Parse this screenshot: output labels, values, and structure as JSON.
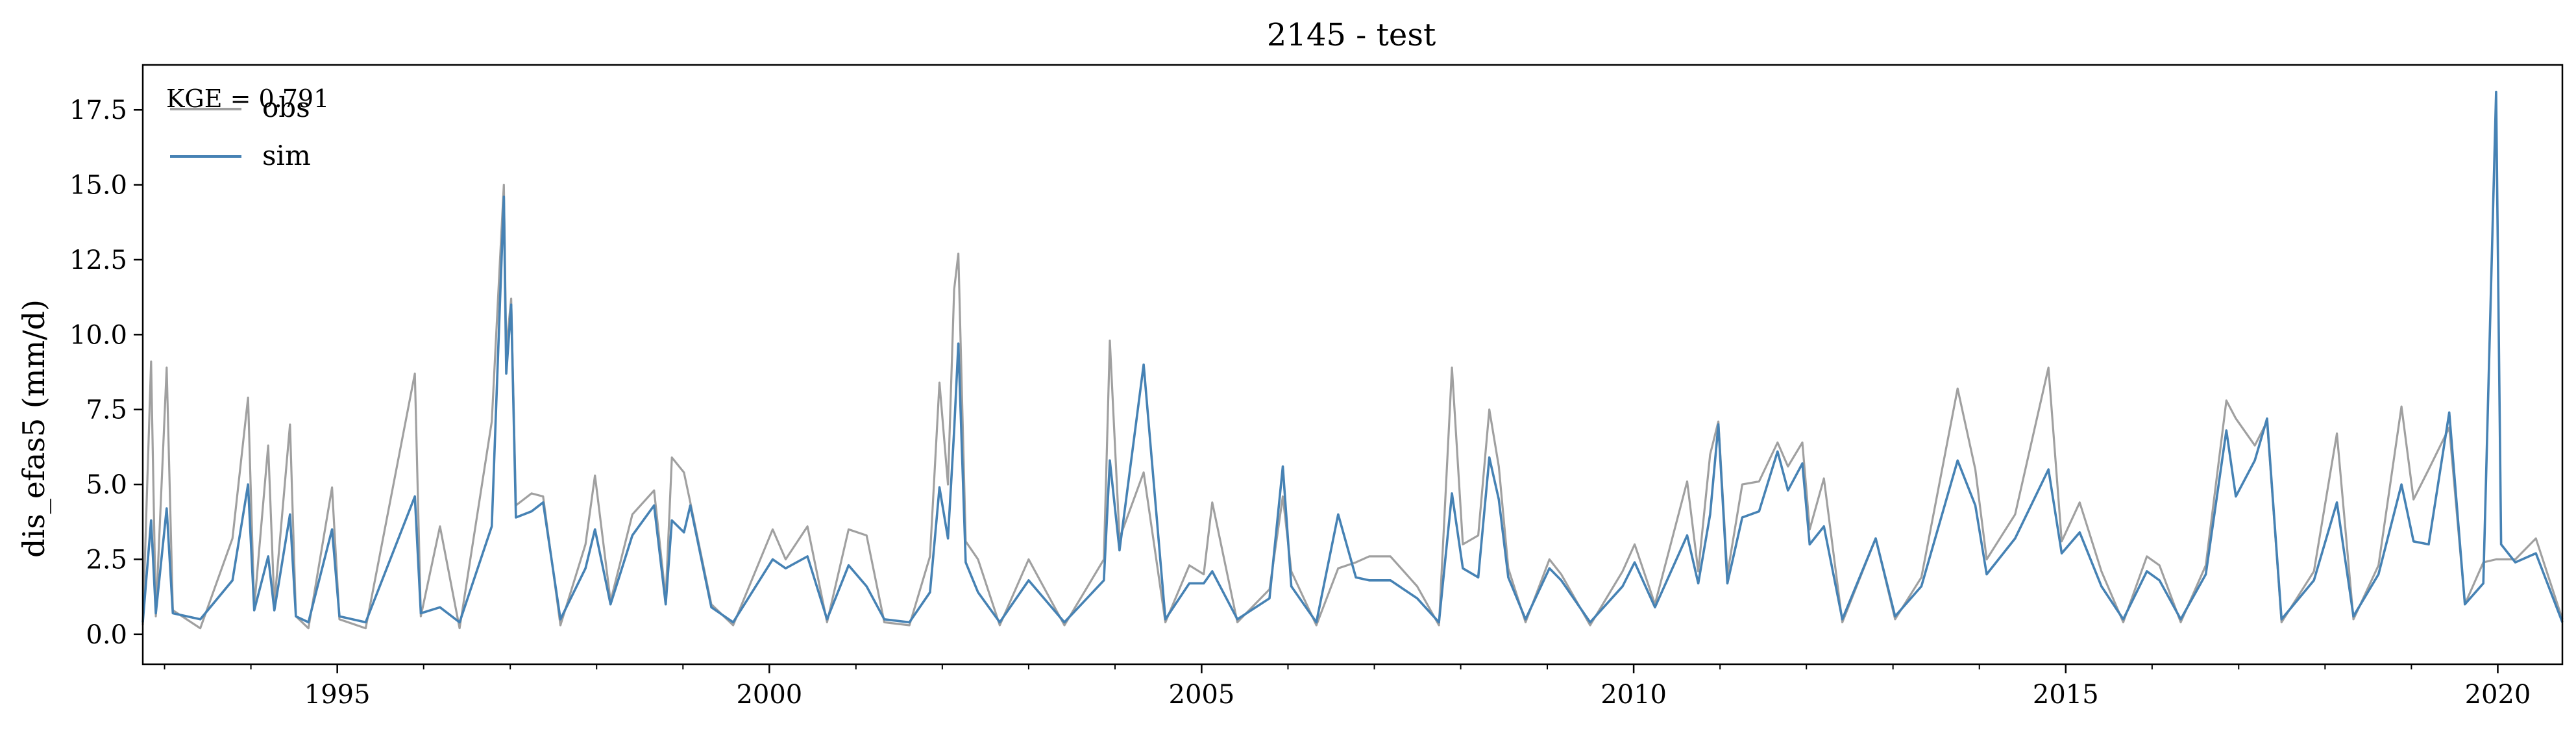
{
  "chart_data": {
    "type": "line",
    "title": "2145 - test",
    "xlabel": "",
    "ylabel": "dis_efas5 (mm/d)",
    "xlim": [
      "1992-10-01",
      "2020-09-30"
    ],
    "ylim": [
      -1.0,
      19.0
    ],
    "x_ticks": [
      "1995",
      "2000",
      "2005",
      "2010",
      "2015",
      "2020"
    ],
    "y_ticks": [
      "0.0",
      "2.5",
      "5.0",
      "7.5",
      "10.0",
      "12.5",
      "15.0",
      "17.5"
    ],
    "annotation": "KGE = 0.791",
    "legend": "upper-left",
    "grid": false,
    "colors": {
      "obs": "#a0a0a0",
      "sim": "#4682b4"
    },
    "series": [
      {
        "name": "obs",
        "points": [
          [
            "1992-10-01",
            0.3
          ],
          [
            "1992-11-05",
            9.1
          ],
          [
            "1992-11-25",
            0.6
          ],
          [
            "1993-01-10",
            8.9
          ],
          [
            "1993-02-05",
            0.8
          ],
          [
            "1993-06-01",
            0.2
          ],
          [
            "1993-10-15",
            3.2
          ],
          [
            "1993-12-20",
            7.9
          ],
          [
            "1994-01-15",
            0.9
          ],
          [
            "1994-03-15",
            6.3
          ],
          [
            "1994-04-10",
            1.0
          ],
          [
            "1994-06-15",
            7.0
          ],
          [
            "1994-07-10",
            0.6
          ],
          [
            "1994-09-01",
            0.2
          ],
          [
            "1994-12-10",
            4.9
          ],
          [
            "1995-01-10",
            0.5
          ],
          [
            "1995-05-01",
            0.2
          ],
          [
            "1995-11-25",
            8.7
          ],
          [
            "1995-12-20",
            0.6
          ],
          [
            "1996-03-10",
            3.6
          ],
          [
            "1996-06-01",
            0.2
          ],
          [
            "1996-10-15",
            7.1
          ],
          [
            "1996-12-05",
            15.0
          ],
          [
            "1996-12-15",
            9.5
          ],
          [
            "1997-01-05",
            11.2
          ],
          [
            "1997-01-25",
            4.3
          ],
          [
            "1997-04-01",
            4.7
          ],
          [
            "1997-05-20",
            4.6
          ],
          [
            "1997-08-01",
            0.3
          ],
          [
            "1997-11-15",
            3.0
          ],
          [
            "1997-12-25",
            5.3
          ],
          [
            "1998-03-01",
            1.1
          ],
          [
            "1998-06-01",
            4.0
          ],
          [
            "1998-09-01",
            4.8
          ],
          [
            "1998-10-20",
            1.2
          ],
          [
            "1998-11-15",
            5.9
          ],
          [
            "1999-01-05",
            5.4
          ],
          [
            "1999-02-01",
            4.4
          ],
          [
            "1999-05-01",
            1.0
          ],
          [
            "1999-08-01",
            0.3
          ],
          [
            "2000-01-15",
            3.5
          ],
          [
            "2000-03-10",
            2.5
          ],
          [
            "2000-06-10",
            3.6
          ],
          [
            "2000-09-01",
            0.4
          ],
          [
            "2000-12-01",
            3.5
          ],
          [
            "2001-02-15",
            3.3
          ],
          [
            "2001-05-01",
            0.4
          ],
          [
            "2001-08-15",
            0.3
          ],
          [
            "2001-11-10",
            2.6
          ],
          [
            "2001-12-20",
            8.4
          ],
          [
            "2002-01-25",
            5.0
          ],
          [
            "2002-02-20",
            11.5
          ],
          [
            "2002-03-10",
            12.7
          ],
          [
            "2002-04-10",
            3.1
          ],
          [
            "2002-06-01",
            2.5
          ],
          [
            "2002-09-01",
            0.3
          ],
          [
            "2003-01-01",
            2.5
          ],
          [
            "2003-06-01",
            0.3
          ],
          [
            "2003-11-15",
            2.5
          ],
          [
            "2003-12-10",
            9.8
          ],
          [
            "2004-01-20",
            3.2
          ],
          [
            "2004-05-01",
            5.4
          ],
          [
            "2004-08-01",
            0.4
          ],
          [
            "2004-11-10",
            2.3
          ],
          [
            "2005-01-10",
            2.0
          ],
          [
            "2005-02-15",
            4.4
          ],
          [
            "2005-06-01",
            0.4
          ],
          [
            "2005-10-15",
            1.5
          ],
          [
            "2005-12-10",
            4.6
          ],
          [
            "2006-01-15",
            2.1
          ],
          [
            "2006-05-01",
            0.3
          ],
          [
            "2006-08-01",
            2.2
          ],
          [
            "2006-10-15",
            2.4
          ],
          [
            "2006-12-10",
            2.6
          ],
          [
            "2007-03-10",
            2.6
          ],
          [
            "2007-07-01",
            1.6
          ],
          [
            "2007-10-01",
            0.3
          ],
          [
            "2007-11-25",
            8.9
          ],
          [
            "2008-01-10",
            3.0
          ],
          [
            "2008-03-15",
            3.3
          ],
          [
            "2008-05-01",
            7.5
          ],
          [
            "2008-06-10",
            5.6
          ],
          [
            "2008-07-20",
            2.2
          ],
          [
            "2008-10-01",
            0.4
          ],
          [
            "2009-01-10",
            2.5
          ],
          [
            "2009-03-01",
            2.0
          ],
          [
            "2009-07-01",
            0.3
          ],
          [
            "2009-11-15",
            2.1
          ],
          [
            "2010-01-05",
            3.0
          ],
          [
            "2010-04-01",
            1.0
          ],
          [
            "2010-08-15",
            5.1
          ],
          [
            "2010-10-01",
            2.1
          ],
          [
            "2010-11-20",
            6.0
          ],
          [
            "2010-12-25",
            7.1
          ],
          [
            "2011-02-01",
            2.0
          ],
          [
            "2011-04-05",
            5.0
          ],
          [
            "2011-06-15",
            5.1
          ],
          [
            "2011-09-01",
            6.4
          ],
          [
            "2011-10-15",
            5.6
          ],
          [
            "2011-12-15",
            6.4
          ],
          [
            "2012-01-15",
            3.5
          ],
          [
            "2012-03-15",
            5.2
          ],
          [
            "2012-06-01",
            0.4
          ],
          [
            "2012-10-20",
            3.2
          ],
          [
            "2013-01-10",
            0.5
          ],
          [
            "2013-05-01",
            1.9
          ],
          [
            "2013-10-01",
            8.2
          ],
          [
            "2013-12-15",
            5.5
          ],
          [
            "2014-02-01",
            2.5
          ],
          [
            "2014-06-01",
            4.0
          ],
          [
            "2014-10-20",
            8.9
          ],
          [
            "2014-12-15",
            3.1
          ],
          [
            "2015-03-01",
            4.4
          ],
          [
            "2015-06-01",
            2.1
          ],
          [
            "2015-09-01",
            0.4
          ],
          [
            "2015-12-10",
            2.6
          ],
          [
            "2016-02-01",
            2.3
          ],
          [
            "2016-05-01",
            0.4
          ],
          [
            "2016-08-15",
            2.3
          ],
          [
            "2016-11-10",
            7.8
          ],
          [
            "2016-12-20",
            7.2
          ],
          [
            "2017-03-10",
            6.3
          ],
          [
            "2017-05-01",
            7.1
          ],
          [
            "2017-07-01",
            0.4
          ],
          [
            "2017-11-15",
            2.1
          ],
          [
            "2018-02-20",
            6.7
          ],
          [
            "2018-05-01",
            0.5
          ],
          [
            "2018-08-15",
            2.3
          ],
          [
            "2018-11-20",
            7.6
          ],
          [
            "2019-01-10",
            4.5
          ],
          [
            "2019-03-15",
            5.5
          ],
          [
            "2019-06-10",
            6.9
          ],
          [
            "2019-08-15",
            1.0
          ],
          [
            "2019-11-01",
            2.4
          ],
          [
            "2019-12-25",
            2.5
          ],
          [
            "2020-03-15",
            2.5
          ],
          [
            "2020-06-10",
            3.2
          ],
          [
            "2020-09-30",
            0.5
          ]
        ]
      },
      {
        "name": "sim",
        "points": [
          [
            "1992-10-01",
            0.4
          ],
          [
            "1992-11-05",
            3.8
          ],
          [
            "1992-11-25",
            0.7
          ],
          [
            "1993-01-10",
            4.2
          ],
          [
            "1993-02-05",
            0.7
          ],
          [
            "1993-06-01",
            0.5
          ],
          [
            "1993-10-15",
            1.8
          ],
          [
            "1993-12-20",
            5.0
          ],
          [
            "1994-01-15",
            0.8
          ],
          [
            "1994-03-15",
            2.6
          ],
          [
            "1994-04-10",
            0.8
          ],
          [
            "1994-06-15",
            4.0
          ],
          [
            "1994-07-10",
            0.6
          ],
          [
            "1994-09-01",
            0.4
          ],
          [
            "1994-12-10",
            3.5
          ],
          [
            "1995-01-10",
            0.6
          ],
          [
            "1995-05-01",
            0.4
          ],
          [
            "1995-11-25",
            4.6
          ],
          [
            "1995-12-20",
            0.7
          ],
          [
            "1996-03-10",
            0.9
          ],
          [
            "1996-06-01",
            0.4
          ],
          [
            "1996-10-15",
            3.6
          ],
          [
            "1996-12-05",
            14.6
          ],
          [
            "1996-12-15",
            8.7
          ],
          [
            "1997-01-05",
            11.0
          ],
          [
            "1997-01-25",
            3.9
          ],
          [
            "1997-04-01",
            4.1
          ],
          [
            "1997-05-20",
            4.4
          ],
          [
            "1997-08-01",
            0.5
          ],
          [
            "1997-11-15",
            2.2
          ],
          [
            "1997-12-25",
            3.5
          ],
          [
            "1998-03-01",
            1.0
          ],
          [
            "1998-06-01",
            3.3
          ],
          [
            "1998-09-01",
            4.3
          ],
          [
            "1998-10-20",
            1.0
          ],
          [
            "1998-11-15",
            3.8
          ],
          [
            "1999-01-05",
            3.4
          ],
          [
            "1999-02-01",
            4.3
          ],
          [
            "1999-05-01",
            0.9
          ],
          [
            "1999-08-01",
            0.4
          ],
          [
            "2000-01-15",
            2.5
          ],
          [
            "2000-03-10",
            2.2
          ],
          [
            "2000-06-10",
            2.6
          ],
          [
            "2000-09-01",
            0.5
          ],
          [
            "2000-12-01",
            2.3
          ],
          [
            "2001-02-15",
            1.6
          ],
          [
            "2001-05-01",
            0.5
          ],
          [
            "2001-08-15",
            0.4
          ],
          [
            "2001-11-10",
            1.4
          ],
          [
            "2001-12-20",
            4.9
          ],
          [
            "2002-01-25",
            3.2
          ],
          [
            "2002-02-20",
            6.8
          ],
          [
            "2002-03-10",
            9.7
          ],
          [
            "2002-04-10",
            2.4
          ],
          [
            "2002-06-01",
            1.4
          ],
          [
            "2002-09-01",
            0.4
          ],
          [
            "2003-01-01",
            1.8
          ],
          [
            "2003-06-01",
            0.4
          ],
          [
            "2003-11-15",
            1.8
          ],
          [
            "2003-12-10",
            5.8
          ],
          [
            "2004-01-20",
            2.8
          ],
          [
            "2004-05-01",
            9.0
          ],
          [
            "2004-08-01",
            0.5
          ],
          [
            "2004-11-10",
            1.7
          ],
          [
            "2005-01-10",
            1.7
          ],
          [
            "2005-02-15",
            2.1
          ],
          [
            "2005-06-01",
            0.5
          ],
          [
            "2005-10-15",
            1.2
          ],
          [
            "2005-12-10",
            5.6
          ],
          [
            "2006-01-15",
            1.6
          ],
          [
            "2006-05-01",
            0.4
          ],
          [
            "2006-08-01",
            4.0
          ],
          [
            "2006-10-15",
            1.9
          ],
          [
            "2006-12-10",
            1.8
          ],
          [
            "2007-03-10",
            1.8
          ],
          [
            "2007-07-01",
            1.2
          ],
          [
            "2007-10-01",
            0.4
          ],
          [
            "2007-11-25",
            4.7
          ],
          [
            "2008-01-10",
            2.2
          ],
          [
            "2008-03-15",
            1.9
          ],
          [
            "2008-05-01",
            5.9
          ],
          [
            "2008-06-10",
            4.5
          ],
          [
            "2008-07-20",
            1.9
          ],
          [
            "2008-10-01",
            0.5
          ],
          [
            "2009-01-10",
            2.2
          ],
          [
            "2009-03-01",
            1.8
          ],
          [
            "2009-07-01",
            0.4
          ],
          [
            "2009-11-15",
            1.6
          ],
          [
            "2010-01-05",
            2.4
          ],
          [
            "2010-04-01",
            0.9
          ],
          [
            "2010-08-15",
            3.3
          ],
          [
            "2010-10-01",
            1.7
          ],
          [
            "2010-11-20",
            4.0
          ],
          [
            "2010-12-25",
            7.0
          ],
          [
            "2011-02-01",
            1.7
          ],
          [
            "2011-04-05",
            3.9
          ],
          [
            "2011-06-15",
            4.1
          ],
          [
            "2011-09-01",
            6.1
          ],
          [
            "2011-10-15",
            4.8
          ],
          [
            "2011-12-15",
            5.7
          ],
          [
            "2012-01-15",
            3.0
          ],
          [
            "2012-03-15",
            3.6
          ],
          [
            "2012-06-01",
            0.5
          ],
          [
            "2012-10-20",
            3.2
          ],
          [
            "2013-01-10",
            0.6
          ],
          [
            "2013-05-01",
            1.6
          ],
          [
            "2013-10-01",
            5.8
          ],
          [
            "2013-12-15",
            4.3
          ],
          [
            "2014-02-01",
            2.0
          ],
          [
            "2014-06-01",
            3.2
          ],
          [
            "2014-10-20",
            5.5
          ],
          [
            "2014-12-15",
            2.7
          ],
          [
            "2015-03-01",
            3.4
          ],
          [
            "2015-06-01",
            1.6
          ],
          [
            "2015-09-01",
            0.5
          ],
          [
            "2015-12-10",
            2.1
          ],
          [
            "2016-02-01",
            1.8
          ],
          [
            "2016-05-01",
            0.5
          ],
          [
            "2016-08-15",
            2.0
          ],
          [
            "2016-11-10",
            6.8
          ],
          [
            "2016-12-20",
            4.6
          ],
          [
            "2017-03-10",
            5.8
          ],
          [
            "2017-05-01",
            7.2
          ],
          [
            "2017-07-01",
            0.5
          ],
          [
            "2017-11-15",
            1.8
          ],
          [
            "2018-02-20",
            4.4
          ],
          [
            "2018-05-01",
            0.6
          ],
          [
            "2018-08-15",
            2.0
          ],
          [
            "2018-11-20",
            5.0
          ],
          [
            "2019-01-10",
            3.1
          ],
          [
            "2019-03-15",
            3.0
          ],
          [
            "2019-06-10",
            7.4
          ],
          [
            "2019-08-15",
            1.0
          ],
          [
            "2019-11-01",
            1.7
          ],
          [
            "2019-12-25",
            18.1
          ],
          [
            "2020-01-15",
            3.0
          ],
          [
            "2020-03-15",
            2.4
          ],
          [
            "2020-06-10",
            2.7
          ],
          [
            "2020-09-30",
            0.4
          ]
        ]
      }
    ]
  }
}
